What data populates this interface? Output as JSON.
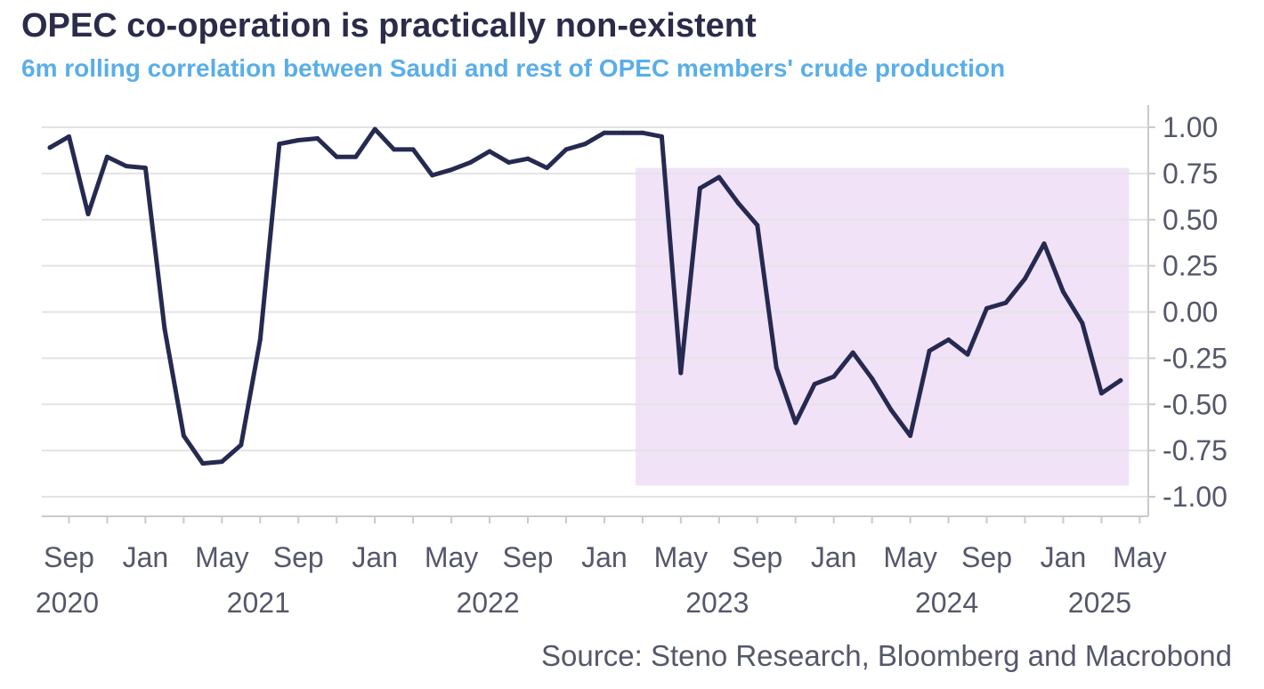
{
  "chart_data": {
    "type": "line",
    "title": "OPEC co-operation is practically non-existent",
    "subtitle": "6m rolling correlation between Saudi and rest of OPEC members' crude production",
    "source": "Source: Steno Research, Bloomberg and Macrobond",
    "x_start": "2020-08",
    "x_end": "2025-05",
    "ylim": [
      -1.05,
      1.1
    ],
    "yticks": [
      1.0,
      0.75,
      0.5,
      0.25,
      0.0,
      -0.25,
      -0.5,
      -0.75,
      -1.0
    ],
    "ytick_labels": [
      "1.00",
      "0.75",
      "0.50",
      "0.25",
      "0.00",
      "-0.25",
      "-0.50",
      "-0.75",
      "-1.00"
    ],
    "xtick_labels": [
      {
        "month": "2020-09",
        "label": "Sep"
      },
      {
        "month": "2021-01",
        "label": "Jan"
      },
      {
        "month": "2021-05",
        "label": "May"
      },
      {
        "month": "2021-09",
        "label": "Sep"
      },
      {
        "month": "2022-01",
        "label": "Jan"
      },
      {
        "month": "2022-05",
        "label": "May"
      },
      {
        "month": "2022-09",
        "label": "Sep"
      },
      {
        "month": "2023-01",
        "label": "Jan"
      },
      {
        "month": "2023-05",
        "label": "May"
      },
      {
        "month": "2023-09",
        "label": "Sep"
      },
      {
        "month": "2024-01",
        "label": "Jan"
      },
      {
        "month": "2024-05",
        "label": "May"
      },
      {
        "month": "2024-09",
        "label": "Sep"
      },
      {
        "month": "2025-01",
        "label": "Jan"
      },
      {
        "month": "2025-05",
        "label": "May"
      }
    ],
    "year_labels": [
      {
        "month": "2020-09",
        "label": "2020"
      },
      {
        "month": "2021-07",
        "label": "2021"
      },
      {
        "month": "2022-07",
        "label": "2022"
      },
      {
        "month": "2023-07",
        "label": "2023"
      },
      {
        "month": "2024-07",
        "label": "2024"
      },
      {
        "month": "2025-03",
        "label": "2025"
      }
    ],
    "grid": true,
    "highlight_region": {
      "x_from": "2023-03",
      "x_to": "2025-05",
      "y_from": -0.94,
      "y_to": 0.78,
      "color": "#f1e2f8"
    },
    "series": [
      {
        "color": "#262a50",
        "points": [
          {
            "x": "2020-08",
            "y": 0.89
          },
          {
            "x": "2020-09",
            "y": 0.95
          },
          {
            "x": "2020-10",
            "y": 0.53
          },
          {
            "x": "2020-11",
            "y": 0.84
          },
          {
            "x": "2020-12",
            "y": 0.79
          },
          {
            "x": "2021-01",
            "y": 0.78
          },
          {
            "x": "2021-02",
            "y": -0.09
          },
          {
            "x": "2021-03",
            "y": -0.67
          },
          {
            "x": "2021-04",
            "y": -0.82
          },
          {
            "x": "2021-05",
            "y": -0.81
          },
          {
            "x": "2021-06",
            "y": -0.72
          },
          {
            "x": "2021-07",
            "y": -0.15
          },
          {
            "x": "2021-08",
            "y": 0.91
          },
          {
            "x": "2021-09",
            "y": 0.93
          },
          {
            "x": "2021-10",
            "y": 0.94
          },
          {
            "x": "2021-11",
            "y": 0.84
          },
          {
            "x": "2021-12",
            "y": 0.84
          },
          {
            "x": "2022-01",
            "y": 0.99
          },
          {
            "x": "2022-02",
            "y": 0.88
          },
          {
            "x": "2022-03",
            "y": 0.88
          },
          {
            "x": "2022-04",
            "y": 0.74
          },
          {
            "x": "2022-05",
            "y": 0.77
          },
          {
            "x": "2022-06",
            "y": 0.81
          },
          {
            "x": "2022-07",
            "y": 0.87
          },
          {
            "x": "2022-08",
            "y": 0.81
          },
          {
            "x": "2022-09",
            "y": 0.83
          },
          {
            "x": "2022-10",
            "y": 0.78
          },
          {
            "x": "2022-11",
            "y": 0.88
          },
          {
            "x": "2022-12",
            "y": 0.91
          },
          {
            "x": "2023-01",
            "y": 0.97
          },
          {
            "x": "2023-02",
            "y": 0.97
          },
          {
            "x": "2023-03",
            "y": 0.97
          },
          {
            "x": "2023-04",
            "y": 0.95
          },
          {
            "x": "2023-05",
            "y": -0.33
          },
          {
            "x": "2023-06",
            "y": 0.67
          },
          {
            "x": "2023-07",
            "y": 0.73
          },
          {
            "x": "2023-08",
            "y": 0.59
          },
          {
            "x": "2023-09",
            "y": 0.47
          },
          {
            "x": "2023-10",
            "y": -0.3
          },
          {
            "x": "2023-11",
            "y": -0.6
          },
          {
            "x": "2023-12",
            "y": -0.39
          },
          {
            "x": "2024-01",
            "y": -0.35
          },
          {
            "x": "2024-02",
            "y": -0.22
          },
          {
            "x": "2024-03",
            "y": -0.36
          },
          {
            "x": "2024-04",
            "y": -0.53
          },
          {
            "x": "2024-05",
            "y": -0.67
          },
          {
            "x": "2024-06",
            "y": -0.21
          },
          {
            "x": "2024-07",
            "y": -0.15
          },
          {
            "x": "2024-08",
            "y": -0.23
          },
          {
            "x": "2024-09",
            "y": 0.02
          },
          {
            "x": "2024-10",
            "y": 0.05
          },
          {
            "x": "2024-11",
            "y": 0.18
          },
          {
            "x": "2024-12",
            "y": 0.37
          },
          {
            "x": "2025-01",
            "y": 0.11
          },
          {
            "x": "2025-02",
            "y": -0.06
          },
          {
            "x": "2025-03",
            "y": -0.44
          },
          {
            "x": "2025-04",
            "y": -0.37
          }
        ]
      }
    ]
  },
  "colors": {
    "title": "#2b2b4a",
    "subtitle": "#5aaee8",
    "axis_text": "#55576a",
    "grid": "#e3e3e6",
    "axis": "#c9c9cf"
  }
}
